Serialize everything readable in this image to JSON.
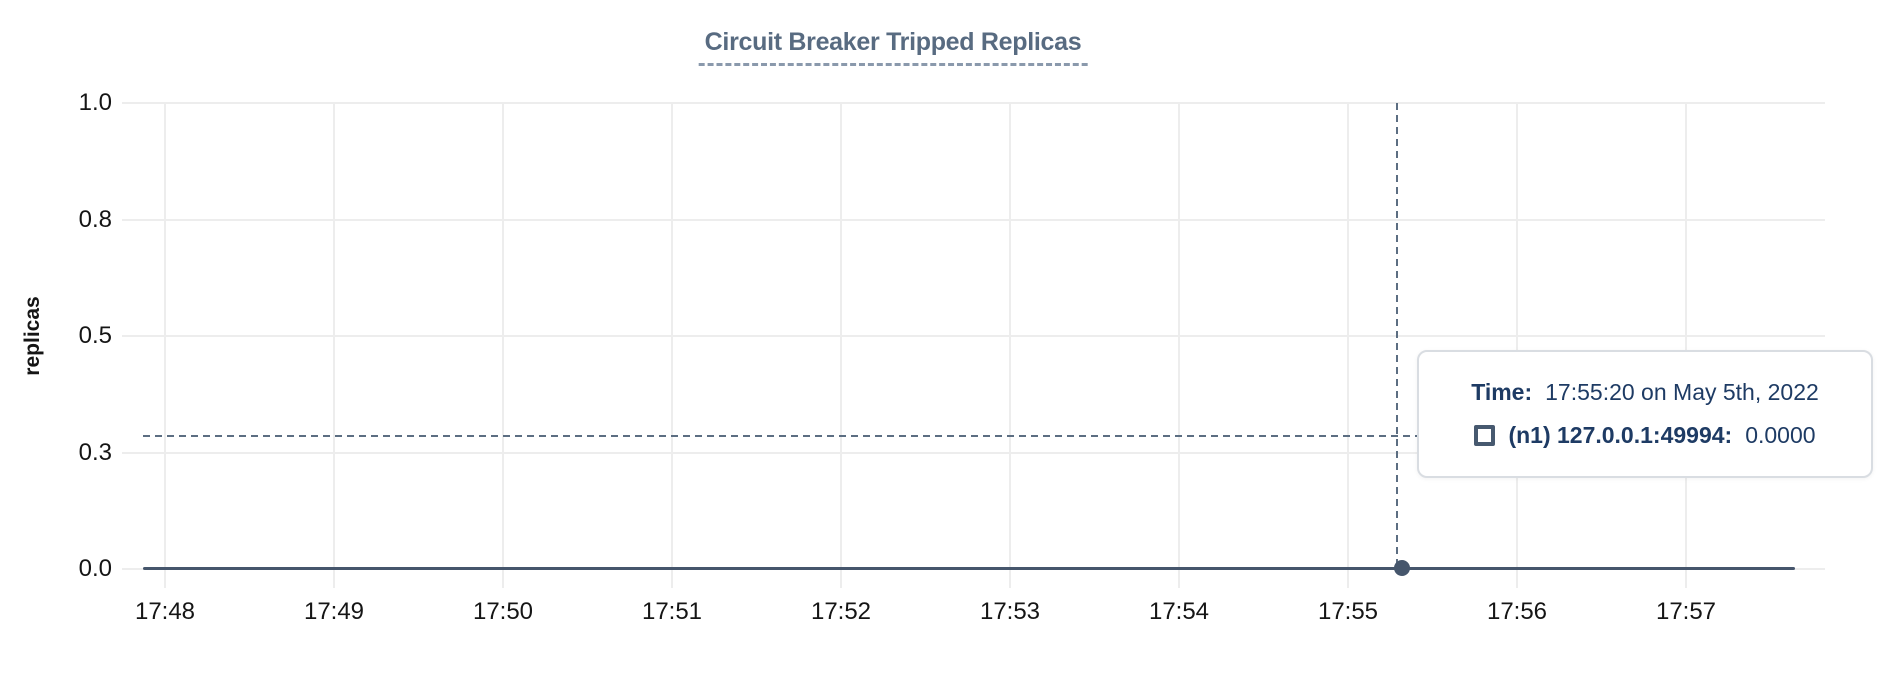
{
  "title": "Circuit Breaker Tripped Replicas",
  "y_axis": {
    "label": "replicas",
    "ticks": [
      "1.0",
      "0.8",
      "0.5",
      "0.3",
      "0.0"
    ]
  },
  "x_axis": {
    "ticks": [
      "17:48",
      "17:49",
      "17:50",
      "17:51",
      "17:52",
      "17:53",
      "17:54",
      "17:55",
      "17:56",
      "17:57"
    ]
  },
  "tooltip": {
    "time_label": "Time:",
    "time_value": "17:55:20 on May 5th, 2022",
    "series_label": "(n1) 127.0.0.1:49994:",
    "series_value": "0.0000"
  },
  "chart_data": {
    "type": "line",
    "title": "Circuit Breaker Tripped Replicas",
    "xlabel": "",
    "ylabel": "replicas",
    "ylim": [
      0,
      1
    ],
    "grid": true,
    "x": [
      "17:48",
      "17:49",
      "17:50",
      "17:51",
      "17:52",
      "17:53",
      "17:54",
      "17:55",
      "17:56",
      "17:57"
    ],
    "y_tick_labels": [
      "1.0",
      "0.8",
      "0.5",
      "0.3",
      "0.0"
    ],
    "y_tick_values": [
      1.0,
      0.75,
      0.5,
      0.25,
      0.0
    ],
    "series": [
      {
        "name": "(n1) 127.0.0.1:49994",
        "values": [
          0,
          0,
          0,
          0,
          0,
          0,
          0,
          0,
          0,
          0
        ]
      }
    ],
    "cursor": {
      "time": "17:55:20",
      "date": "May 5th, 2022",
      "point_value": 0.0,
      "cursor_y_value": 0.29
    },
    "legend_position": "tooltip-only"
  },
  "colors": {
    "title": "#586b81",
    "title-underline": "#8a99ac",
    "grid": "#ededed",
    "line": "#46566c",
    "crosshair": "#5c6e82",
    "tick-text": "#151515",
    "tooltip-text": "#1e3b64",
    "tooltip-border": "#d9dde2",
    "swatch-border": "#47596f"
  }
}
